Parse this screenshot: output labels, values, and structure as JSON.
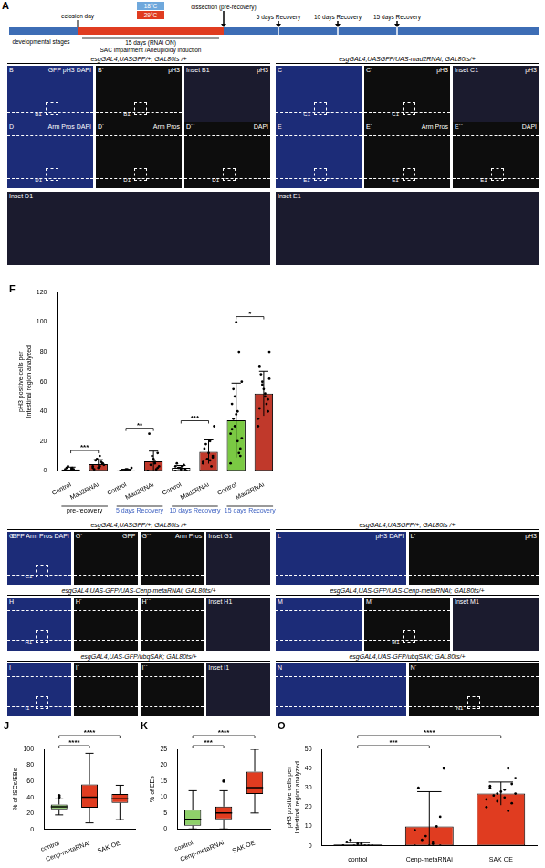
{
  "timeline": {
    "letter": "A",
    "stage": "developmental stages",
    "eclosion": "eclosion day",
    "temperatures": [
      {
        "label": "18°C",
        "color": "#6fa8dc"
      },
      {
        "label": "29°C",
        "color": "#e03c20"
      }
    ],
    "rnai": "15 days (RNAi ON)",
    "effect": "SAC impairment /Aneuploidy induction",
    "timepoints": [
      "dissection (pre-recovery)",
      "5 days Recovery",
      "10 days Recovery",
      "15 days Recovery"
    ]
  },
  "image_groups": [
    {
      "genotype": "esgGAL4,UASGFP/+; GAL80ts /+",
      "panels": [
        {
          "label": "B",
          "channel": "GFP pH3 DAPI",
          "marker": "B1"
        },
        {
          "label": "B´",
          "channel": "pH3",
          "marker": "B1"
        },
        {
          "label": "Inset B1",
          "channel": "pH3"
        }
      ]
    },
    {
      "genotype": "esgGAL4,UASGFP/UAS-mad2RNAi; GAL80ts/+",
      "panels": [
        {
          "label": "C",
          "marker": "C1"
        },
        {
          "label": "C´",
          "channel": "pH3",
          "marker": "C1"
        },
        {
          "label": "Inset C1",
          "channel": "pH3"
        }
      ]
    },
    {
      "panels": [
        {
          "label": "D",
          "channel": "Arm Pros DAPI",
          "marker": "D1"
        },
        {
          "label": "D´",
          "channel": "Arm Pros",
          "marker": "D1"
        },
        {
          "label": "D´´",
          "channel": "DAPI",
          "marker": "D1"
        }
      ],
      "inset": "Inset D1"
    },
    {
      "panels": [
        {
          "label": "E",
          "marker": "E1"
        },
        {
          "label": "E´",
          "channel": "Arm Pros",
          "marker": "E1"
        },
        {
          "label": "E´´",
          "channel": "DAPI",
          "marker": "E1"
        }
      ],
      "inset": "Inset E1"
    },
    {
      "genotype": "esgGAL4,UASGFP/+; GAL80ts /+",
      "panels": [
        {
          "label": "G",
          "channel": "GFP Arm Pros DAPI",
          "marker": "G1"
        },
        {
          "label": "G´",
          "channel": "GFP"
        },
        {
          "label": "G´´",
          "channel": "Arm Pros"
        },
        {
          "label": "Inset G1"
        }
      ]
    },
    {
      "genotype": "esgGAL4,UAS-GFP/UAS-Cenp-metaRNAi; GAL80ts/+",
      "panels": [
        {
          "label": "H",
          "marker": "H1"
        },
        {
          "label": "H´"
        },
        {
          "label": "H´´"
        },
        {
          "label": "Inset H1"
        }
      ]
    },
    {
      "genotype": "esgGAL4,UAS-GFP/ubqSAK; GAL80ts/+",
      "panels": [
        {
          "label": "I",
          "marker": "I1"
        },
        {
          "label": "I´"
        },
        {
          "label": "I´´"
        },
        {
          "label": "Inset I1"
        }
      ]
    },
    {
      "genotype": "esgGAL4,UASGFP/+; GAL80ts /+",
      "panels": [
        {
          "label": "L",
          "channel": "pH3 DAPI"
        },
        {
          "label": "L´",
          "channel": "pH3"
        }
      ]
    },
    {
      "genotype": "esgGAL4,UAS-GFP/UAS-Cenp-metaRNAi; GAL80ts/+",
      "panels": [
        {
          "label": "M"
        },
        {
          "label": "M´",
          "marker": "M1"
        },
        {
          "label": "Inset M1"
        }
      ]
    },
    {
      "genotype": "esgGAL4,UAS-GFP/ubqSAK; GAL80ts/+",
      "panels": [
        {
          "label": "N"
        },
        {
          "label": "N´",
          "marker": "N1"
        }
      ]
    }
  ],
  "chart_data": [
    {
      "type": "bar",
      "letter": "F",
      "y_label": [
        "pH3 positive cells per",
        "Intestinal region analyzed"
      ],
      "categories": [
        "Control",
        "Mad2RNAi",
        "Control",
        "Mad2RNAi",
        "Control",
        "Mad2RNAi",
        "Control",
        "Mad2RNAi"
      ],
      "groups": [
        {
          "label": "pre-recovery",
          "color": "#000000"
        },
        {
          "label": "5 days Recovery",
          "color": "#3b5fc0"
        },
        {
          "label": "10 days Recovery",
          "color": "#3b5fc0"
        },
        {
          "label": "15 days Recovery",
          "color": "#3b5fc0"
        }
      ],
      "values": [
        1,
        4.5,
        0.4,
        6.3,
        2.1,
        12.8,
        34,
        52
      ],
      "errors": [
        1.5,
        3,
        0.7,
        7,
        1.5,
        8,
        25,
        15
      ],
      "points": [
        [
          0,
          0,
          1,
          0,
          2,
          0,
          1,
          0,
          3,
          1,
          0,
          2
        ],
        [
          2,
          5,
          3,
          8,
          1,
          4,
          6,
          2,
          7,
          3,
          5,
          10
        ],
        [
          0,
          0,
          1,
          0,
          0,
          2,
          0,
          1,
          0,
          0
        ],
        [
          0,
          2,
          5,
          10,
          25,
          3,
          1,
          8,
          4,
          0,
          12,
          6
        ],
        [
          0,
          1,
          3,
          2,
          5,
          0,
          4,
          1,
          2,
          3
        ],
        [
          5,
          10,
          20,
          8,
          15,
          30,
          3,
          12,
          18,
          6,
          9,
          7
        ],
        [
          5,
          10,
          20,
          30,
          45,
          60,
          80,
          100,
          35,
          25,
          15,
          40,
          50,
          28,
          22,
          12,
          38,
          55
        ],
        [
          30,
          40,
          50,
          60,
          70,
          80,
          45,
          55,
          65,
          35,
          48,
          52,
          58,
          42,
          62
        ]
      ],
      "colors": [
        "#ffffff",
        "#c0392b",
        "#ffffff",
        "#c0392b",
        "#ffffff",
        "#c0392b",
        "#7ac943",
        "#c0392b"
      ],
      "significance": [
        {
          "between": [
            0,
            1
          ],
          "label": "***"
        },
        {
          "between": [
            2,
            3
          ],
          "label": "**"
        },
        {
          "between": [
            4,
            5
          ],
          "label": "***"
        },
        {
          "between": [
            6,
            7
          ],
          "label": "*"
        }
      ],
      "ylim": [
        0,
        120
      ],
      "yticks": [
        0,
        20,
        40,
        60,
        80,
        100,
        120
      ],
      "grid": false
    },
    {
      "type": "box",
      "letter": "J",
      "y_label": "% of ISCs/EBs",
      "categories": [
        "control",
        "Cenp-metaRNAi",
        "SAK OE"
      ],
      "boxes": [
        {
          "min": 18,
          "q1": 25,
          "median": 28,
          "q3": 31,
          "max": 38,
          "outliers": [
            40,
            42
          ]
        },
        {
          "min": 8,
          "q1": 27,
          "median": 40,
          "q3": 56,
          "max": 95,
          "outliers": []
        },
        {
          "min": 12,
          "q1": 33,
          "median": 38,
          "q3": 44,
          "max": 55,
          "outliers": []
        }
      ],
      "colors": [
        "#8fd16a",
        "#e03c20",
        "#e03c20"
      ],
      "significance": [
        {
          "between": [
            0,
            1
          ],
          "label": "****"
        },
        {
          "between": [
            0,
            2
          ],
          "label": "****"
        }
      ],
      "ylim": [
        0,
        100
      ],
      "yticks": [
        0,
        20,
        40,
        60,
        80,
        100
      ],
      "grid": false
    },
    {
      "type": "box",
      "letter": "K",
      "y_label": "% of EEs",
      "categories": [
        "control",
        "Cenp-metaRNAi",
        "SAK OE"
      ],
      "boxes": [
        {
          "min": 0,
          "q1": 1,
          "median": 3,
          "q3": 6,
          "max": 12,
          "outliers": []
        },
        {
          "min": 0,
          "q1": 3,
          "median": 5,
          "q3": 7,
          "max": 12,
          "outliers": [
            15
          ]
        },
        {
          "min": 5,
          "q1": 11,
          "median": 13,
          "q3": 18,
          "max": 25,
          "outliers": []
        }
      ],
      "colors": [
        "#8fd16a",
        "#e03c20",
        "#e03c20"
      ],
      "significance": [
        {
          "between": [
            0,
            1
          ],
          "label": "***"
        },
        {
          "between": [
            0,
            2
          ],
          "label": "****"
        }
      ],
      "ylim": [
        0,
        25
      ],
      "yticks": [
        0,
        5,
        10,
        15,
        20,
        25
      ],
      "grid": false
    },
    {
      "type": "bar",
      "letter": "O",
      "y_label": [
        "pH3 positive cells per",
        "Intestinal region analyzed"
      ],
      "categories": [
        "control",
        "Cenp-metaRNAi",
        "SAK OE"
      ],
      "values": [
        0.6,
        10,
        27
      ],
      "errors": [
        1,
        18,
        6
      ],
      "points": [
        [
          0,
          0,
          1,
          0,
          2,
          0,
          0,
          1,
          3,
          0
        ],
        [
          0,
          0,
          2,
          5,
          30,
          40,
          10,
          0,
          3,
          8,
          15,
          1
        ],
        [
          20,
          22,
          25,
          27,
          30,
          35,
          18,
          28,
          26,
          24,
          32,
          29,
          23,
          31,
          27,
          40
        ]
      ],
      "colors": [
        "#ffffff",
        "#e03c20",
        "#e03c20"
      ],
      "significance": [
        {
          "between": [
            0,
            1
          ],
          "label": "***"
        },
        {
          "between": [
            0,
            2
          ],
          "label": "****"
        }
      ],
      "ylim": [
        0,
        50
      ],
      "yticks": [
        0,
        10,
        20,
        30,
        40,
        50
      ],
      "grid": false
    }
  ]
}
